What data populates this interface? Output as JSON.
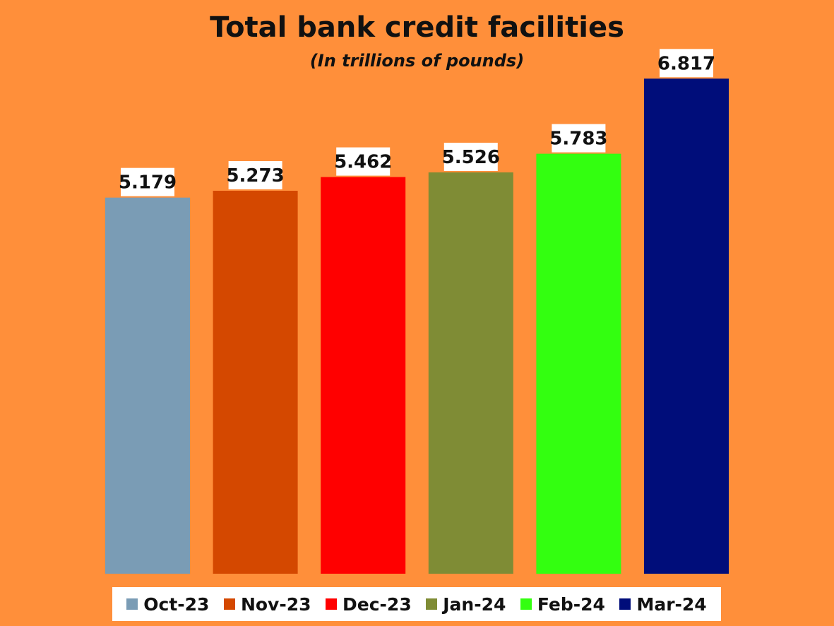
{
  "chart_data": {
    "type": "bar",
    "title": "Total bank credit facilities",
    "subtitle": "(In trillions of pounds)",
    "categories": [
      "Oct-23",
      "Nov-23",
      "Dec-23",
      "Jan-24",
      "Feb-24",
      "Mar-24"
    ],
    "values": [
      5.179,
      5.273,
      5.462,
      5.526,
      5.783,
      6.817
    ],
    "value_labels": [
      "5.179",
      "5.273",
      "5.462",
      "5.526",
      "5.783",
      "6.817"
    ],
    "colors": [
      "#7A9CB5",
      "#D44800",
      "#FF0000",
      "#7F8C35",
      "#33FF10",
      "#000D7A"
    ],
    "legend_position": "bottom",
    "grid": false,
    "ylim": [
      0,
      7.9
    ]
  }
}
